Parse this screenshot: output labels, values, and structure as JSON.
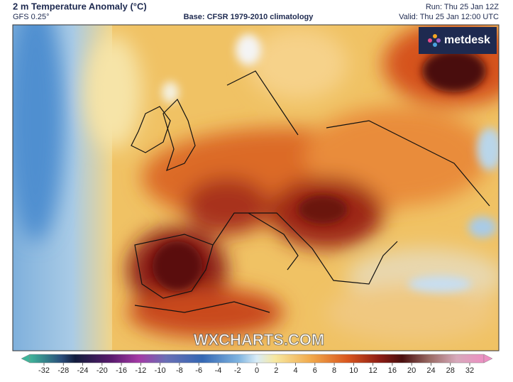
{
  "header": {
    "title": "2 m Temperature Anomaly (°C)",
    "model": "GFS 0.25°",
    "base": "Base: CFSR 1979-2010 climatology",
    "run": "Run: Thu 25 Jan 12Z",
    "valid": "Valid: Thu 25 Jan 12:00 UTC"
  },
  "map": {
    "logo": "metdesk",
    "watermark": "WXCHARTS.COM"
  },
  "colorbar": {
    "ticks": [
      -32,
      -28,
      -24,
      -20,
      -16,
      -12,
      -10,
      -8,
      -6,
      -4,
      -2,
      0,
      2,
      4,
      6,
      8,
      10,
      12,
      16,
      20,
      24,
      28,
      32
    ]
  }
}
